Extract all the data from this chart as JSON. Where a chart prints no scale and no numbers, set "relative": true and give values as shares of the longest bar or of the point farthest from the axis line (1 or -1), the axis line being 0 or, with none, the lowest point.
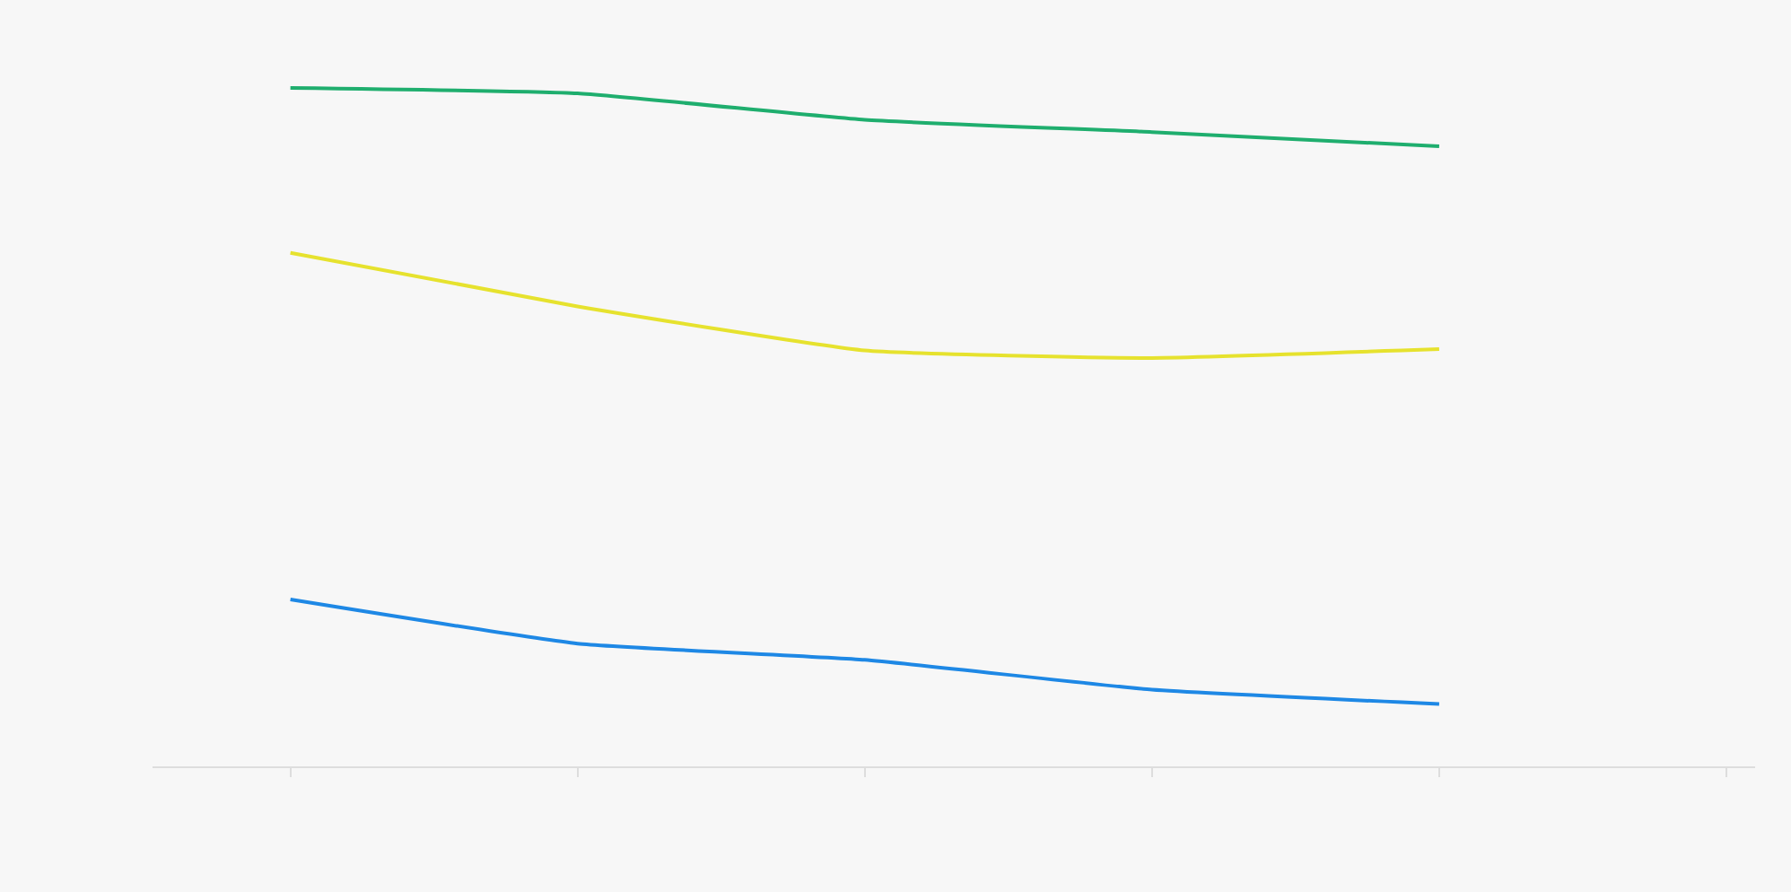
{
  "chart_data": {
    "type": "line",
    "relative": true,
    "categories": [
      null,
      null,
      null,
      null,
      null,
      null
    ],
    "series": [
      {
        "color": "#1e88e5",
        "values": [
          0.246,
          0.181,
          0.157,
          0.113,
          0.092,
          null
        ]
      },
      {
        "color": "#1fae6e",
        "values": [
          1,
          0.992,
          0.953,
          0.935,
          0.914,
          null
        ]
      },
      {
        "color": "#e6e22e",
        "values": [
          0.757,
          0.678,
          0.613,
          0.602,
          0.615,
          null
        ]
      }
    ],
    "grid": false,
    "marker": "none",
    "line_style": "solid"
  }
}
